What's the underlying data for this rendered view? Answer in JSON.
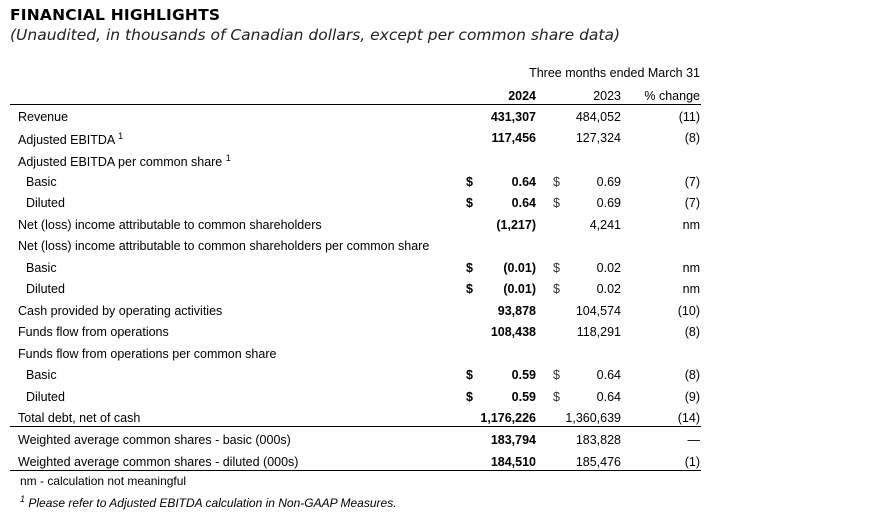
{
  "title": "FINANCIAL HIGHLIGHTS",
  "subtitle": "(Unaudited, in thousands of Canadian dollars, except per common share data)",
  "period_header": "Three months ended March 31",
  "columns": [
    "2024",
    "2023",
    "% change"
  ],
  "rows": [
    {
      "label": "Revenue",
      "indent": false,
      "v2024": "431,307",
      "v2023": "484,052",
      "change": "(11)"
    },
    {
      "label": "Adjusted EBITDA",
      "sup": "1",
      "indent": false,
      "v2024": "117,456",
      "v2023": "127,324",
      "change": "(8)"
    },
    {
      "label": "Adjusted EBITDA per common share",
      "sup": "1",
      "indent": false
    },
    {
      "label": "Basic",
      "indent": true,
      "cur": "$",
      "v2024": "0.64",
      "v2023": "0.69",
      "change": "(7)"
    },
    {
      "label": "Diluted",
      "indent": true,
      "cur": "$",
      "v2024": "0.64",
      "v2023": "0.69",
      "change": "(7)"
    },
    {
      "label": "Net (loss) income attributable to common shareholders",
      "indent": false,
      "v2024": "(1,217)",
      "v2023": "4,241",
      "change": "nm"
    },
    {
      "label": "Net (loss) income attributable to common shareholders per common share",
      "indent": false
    },
    {
      "label": "Basic",
      "indent": true,
      "cur": "$",
      "v2024": "(0.01)",
      "v2023": "0.02",
      "change": "nm"
    },
    {
      "label": "Diluted",
      "indent": true,
      "cur": "$",
      "v2024": "(0.01)",
      "v2023": "0.02",
      "change": "nm"
    },
    {
      "label": "Cash provided by operating activities",
      "indent": false,
      "v2024": "93,878",
      "v2023": "104,574",
      "change": "(10)"
    },
    {
      "label": "Funds flow from operations",
      "indent": false,
      "v2024": "108,438",
      "v2023": "118,291",
      "change": "(8)"
    },
    {
      "label": "Funds flow from operations per common share",
      "indent": false
    },
    {
      "label": "Basic",
      "indent": true,
      "cur": "$",
      "v2024": "0.59",
      "v2023": "0.64",
      "change": "(8)"
    },
    {
      "label": "Diluted",
      "indent": true,
      "cur": "$",
      "v2024": "0.59",
      "v2023": "0.64",
      "change": "(9)"
    },
    {
      "label": "Total debt, net of cash",
      "indent": false,
      "v2024": "1,176,226",
      "v2023": "1,360,639",
      "change": "(14)"
    },
    {
      "label": "Weighted average common shares - basic (000s)",
      "indent": false,
      "v2024": "183,794",
      "v2023": "183,828",
      "change": "—"
    },
    {
      "label": "Weighted average common shares - diluted (000s)",
      "indent": false,
      "v2024": "184,510",
      "v2023": "185,476",
      "change": "(1)"
    }
  ],
  "footnotes": {
    "nm": "nm - calculation not meaningful",
    "note1_mark": "1",
    "note1": "Please refer to Adjusted EBITDA calculation in Non-GAAP Measures."
  }
}
